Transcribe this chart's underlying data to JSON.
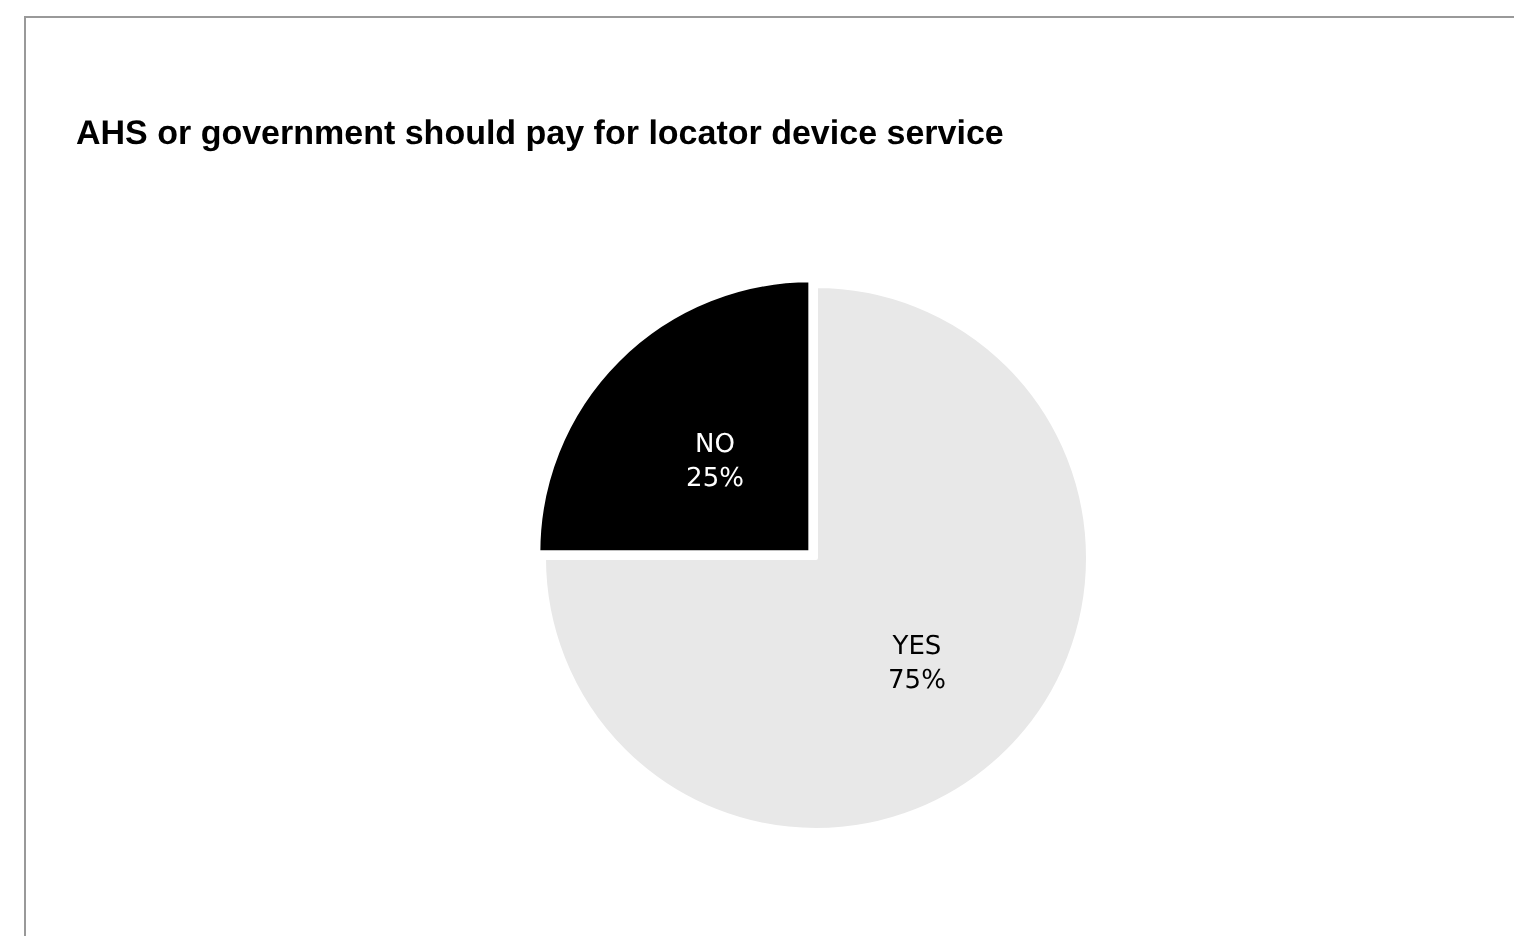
{
  "chart_data": {
    "type": "pie",
    "title": "AHS or government should pay for locator device service",
    "categories": [
      "YES",
      "NO"
    ],
    "values": [
      75,
      25
    ],
    "colors": [
      "#e8e8e8",
      "#000000"
    ],
    "value_labels": [
      "75%",
      "25%"
    ],
    "legend": false
  }
}
